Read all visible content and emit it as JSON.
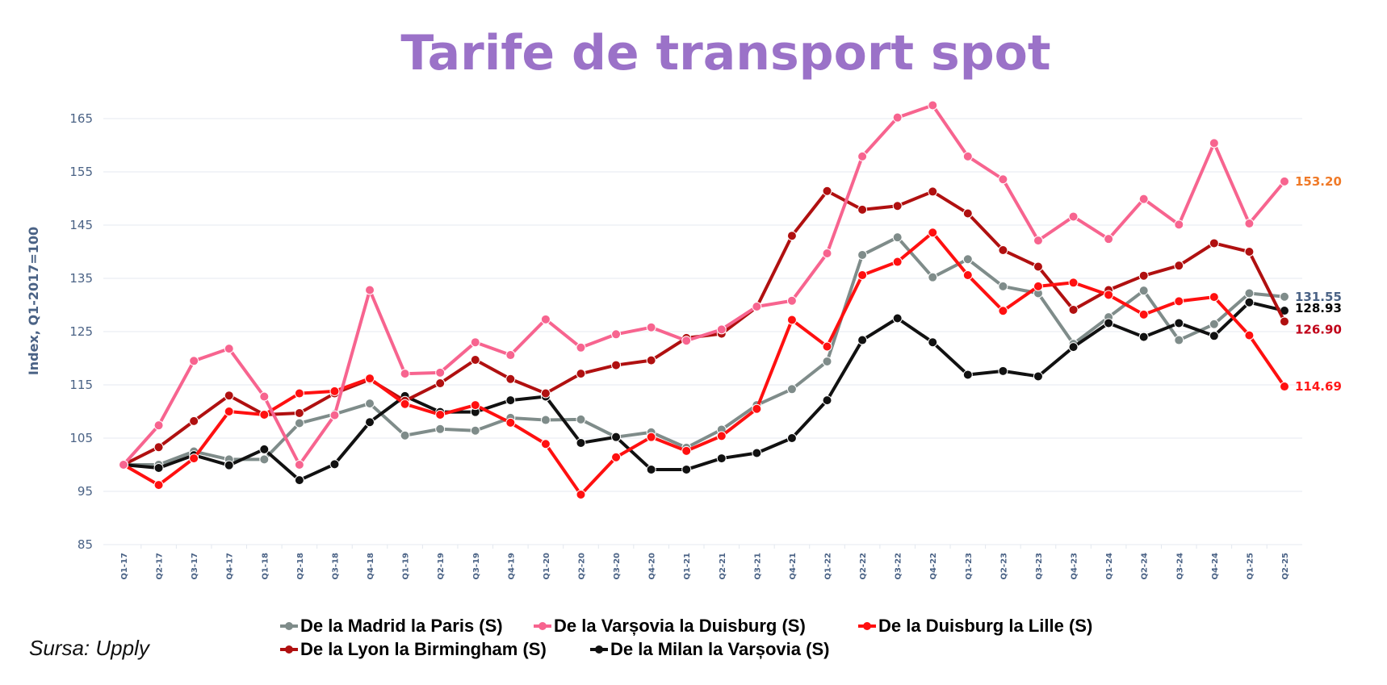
{
  "chart_data": {
    "type": "line",
    "title": "Tarife de transport spot",
    "xlabel": "",
    "ylabel": "Index, Q1-2017=100",
    "ylim": [
      85,
      165
    ],
    "yticks": [
      85,
      95,
      105,
      115,
      125,
      135,
      145,
      155,
      165
    ],
    "grid": true,
    "legend_position": "bottom",
    "source": "Sursa: Upply",
    "categories": [
      "Q1-17",
      "Q2-17",
      "Q3-17",
      "Q4-17",
      "Q1-18",
      "Q2-18",
      "Q3-18",
      "Q4-18",
      "Q1-19",
      "Q2-19",
      "Q3-19",
      "Q4-19",
      "Q1-20",
      "Q2-20",
      "Q3-20",
      "Q4-20",
      "Q1-21",
      "Q2-21",
      "Q3-21",
      "Q4-21",
      "Q1-22",
      "Q2-22",
      "Q3-22",
      "Q4-22",
      "Q1-23",
      "Q2-23",
      "Q3-23",
      "Q4-23",
      "Q1-24",
      "Q2-24",
      "Q3-24",
      "Q4-24",
      "Q1-25",
      "Q2-25"
    ],
    "series": [
      {
        "name": "De la Madrid la Paris (S)",
        "color": "#7f8c8a",
        "end_label": "131.55",
        "end_label_color": "#4a6285",
        "values": [
          100,
          100,
          102.5,
          101,
          101,
          107.8,
          109.5,
          111.5,
          105.5,
          106.7,
          106.4,
          108.8,
          108.4,
          108.5,
          105.2,
          106.1,
          103.2,
          106.6,
          111.2,
          114.2,
          119.4,
          139.4,
          142.7,
          135.2,
          138.6,
          133.5,
          132.2,
          122.7,
          127.7,
          132.7,
          123.4,
          126.4,
          132.2,
          131.55
        ]
      },
      {
        "name": "De la Varșovia la Duisburg (S)",
        "color": "#f7648f",
        "end_label": "153.20",
        "end_label_color": "#f07a28",
        "values": [
          100,
          107.4,
          119.5,
          121.8,
          112.8,
          100,
          109.3,
          132.8,
          117.1,
          117.3,
          123.0,
          120.6,
          127.3,
          122.0,
          124.5,
          125.8,
          123.3,
          125.4,
          129.7,
          130.8,
          139.7,
          157.9,
          165.2,
          167.5,
          157.9,
          153.6,
          142.1,
          146.6,
          142.4,
          149.9,
          145.1,
          160.4,
          145.3,
          153.2
        ]
      },
      {
        "name": "De la Duisburg la Lille (S)",
        "color": "#ff1010",
        "end_label": "114.69",
        "end_label_color": "#ff1a1a",
        "values": [
          100,
          96.2,
          101.2,
          110.0,
          109.4,
          113.4,
          113.8,
          116.2,
          111.4,
          109.4,
          111.2,
          107.9,
          103.9,
          94.4,
          101.4,
          105.2,
          102.6,
          105.4,
          110.5,
          127.2,
          122.2,
          135.6,
          138.1,
          143.6,
          135.6,
          128.9,
          133.5,
          134.2,
          131.9,
          128.2,
          130.7,
          131.5,
          124.3,
          114.69
        ]
      },
      {
        "name": "De la Lyon la Birmingham (S)",
        "color": "#b01010",
        "end_label": "126.90",
        "end_label_color": "#c00018",
        "values": [
          100,
          103.3,
          108.2,
          113.0,
          109.4,
          109.7,
          113.4,
          116.0,
          112.0,
          115.3,
          119.7,
          116.1,
          113.4,
          117.1,
          118.7,
          119.6,
          123.8,
          124.6,
          129.6,
          143.0,
          151.4,
          147.9,
          148.6,
          151.3,
          147.2,
          140.3,
          137.2,
          129.1,
          132.8,
          135.5,
          137.4,
          141.6,
          140.0,
          126.9
        ]
      },
      {
        "name": "De la Milan la Varșovia (S)",
        "color": "#111111",
        "end_label": "128.93",
        "end_label_color": "#000000",
        "values": [
          100,
          99.4,
          101.8,
          99.9,
          102.9,
          97.1,
          100.1,
          108.0,
          112.9,
          109.9,
          109.9,
          112.1,
          112.8,
          104.1,
          105.2,
          99.1,
          99.1,
          101.2,
          102.2,
          105.0,
          112.1,
          123.4,
          127.5,
          123.0,
          116.9,
          117.6,
          116.6,
          122.1,
          126.6,
          124.0,
          126.6,
          124.2,
          130.5,
          128.93
        ]
      }
    ]
  }
}
